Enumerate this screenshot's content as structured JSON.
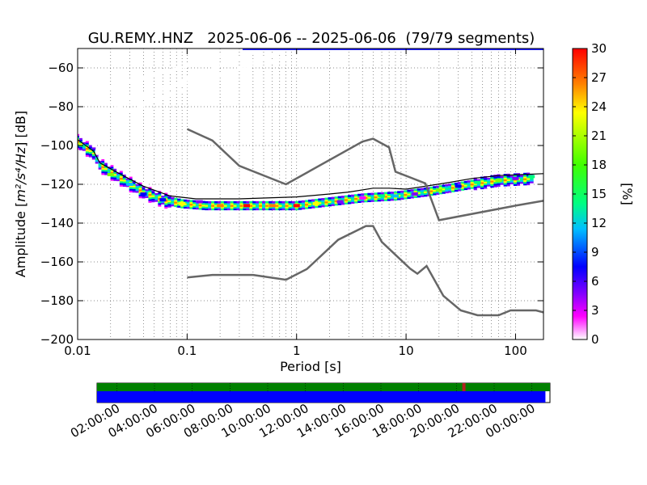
{
  "chart_data": {
    "type": "heatmap",
    "title": "GU.REMY..HNZ   2025-06-06 -- 2025-06-06  (79/79 segments)",
    "xlabel": "Period [s]",
    "ylabel_prefix": "Amplitude [",
    "ylabel_unit": "m²/s⁴/Hz",
    "ylabel_suffix": "] [dB]",
    "xscale": "log",
    "xlim": [
      0.01,
      180
    ],
    "ylim": [
      -200,
      -50
    ],
    "x_ticks": [
      {
        "value": 0.01,
        "label": "0.01"
      },
      {
        "value": 0.1,
        "label": "0.1"
      },
      {
        "value": 1,
        "label": "1"
      },
      {
        "value": 10,
        "label": "10"
      },
      {
        "value": 100,
        "label": "100"
      }
    ],
    "y_ticks": [
      {
        "value": -60,
        "label": "−60"
      },
      {
        "value": -80,
        "label": "−80"
      },
      {
        "value": -100,
        "label": "−100"
      },
      {
        "value": -120,
        "label": "−120"
      },
      {
        "value": -140,
        "label": "−140"
      },
      {
        "value": -160,
        "label": "−160"
      },
      {
        "value": -180,
        "label": "−180"
      },
      {
        "value": -200,
        "label": "−200"
      }
    ],
    "grid": true,
    "colorbar": {
      "label": "[%]",
      "range": [
        0,
        30
      ],
      "ticks": [
        {
          "value": 30,
          "label": "30"
        },
        {
          "value": 27,
          "label": "27"
        },
        {
          "value": 24,
          "label": "24"
        },
        {
          "value": 21,
          "label": "21"
        },
        {
          "value": 18,
          "label": "18"
        },
        {
          "value": 15,
          "label": "15"
        },
        {
          "value": 12,
          "label": "12"
        },
        {
          "value": 9,
          "label": "9"
        },
        {
          "value": 6,
          "label": "6"
        },
        {
          "value": 3,
          "label": "3"
        },
        {
          "value": 0,
          "label": "0"
        }
      ]
    },
    "noise_model_high": [
      [
        0.1,
        -91.5
      ],
      [
        0.17,
        -97.4
      ],
      [
        0.3,
        -110.5
      ],
      [
        0.8,
        -120
      ],
      [
        4,
        -98
      ],
      [
        5,
        -96.5
      ],
      [
        7,
        -101
      ],
      [
        8,
        -113.5
      ],
      [
        15,
        -119.5
      ],
      [
        20,
        -138.5
      ],
      [
        100,
        -131
      ],
      [
        180,
        -128.5
      ]
    ],
    "noise_model_low": [
      [
        0.1,
        -168
      ],
      [
        0.17,
        -166.7
      ],
      [
        0.4,
        -166.7
      ],
      [
        0.8,
        -169.2
      ],
      [
        1.24,
        -163.7
      ],
      [
        2.4,
        -148.6
      ],
      [
        4.3,
        -141.5
      ],
      [
        5,
        -141.5
      ],
      [
        6,
        -149.7
      ],
      [
        10.9,
        -163.5
      ],
      [
        12.7,
        -166.1
      ],
      [
        15.4,
        -162.1
      ],
      [
        21.9,
        -177.5
      ],
      [
        31.6,
        -185
      ],
      [
        45,
        -187.5
      ],
      [
        70,
        -187.5
      ],
      [
        90,
        -185
      ],
      [
        154,
        -185
      ],
      [
        180,
        -186
      ]
    ],
    "mean_psd": [
      [
        0.01,
        -97
      ],
      [
        0.014,
        -103
      ],
      [
        0.016,
        -109
      ],
      [
        0.025,
        -115
      ],
      [
        0.04,
        -121
      ],
      [
        0.07,
        -126
      ],
      [
        0.12,
        -127.5
      ],
      [
        0.3,
        -127.5
      ],
      [
        1,
        -126.5
      ],
      [
        2,
        -125
      ],
      [
        3,
        -124
      ],
      [
        5,
        -122
      ],
      [
        7,
        -122
      ],
      [
        10,
        -122.5
      ],
      [
        15,
        -121
      ],
      [
        25,
        -119
      ],
      [
        40,
        -117
      ],
      [
        70,
        -115.5
      ],
      [
        180,
        -114.5
      ]
    ],
    "pdf_path": [
      [
        0.01,
        -98
      ],
      [
        0.014,
        -104
      ],
      [
        0.016,
        -110
      ],
      [
        0.025,
        -117
      ],
      [
        0.04,
        -124
      ],
      [
        0.06,
        -128
      ],
      [
        0.09,
        -130
      ],
      [
        0.15,
        -131
      ],
      [
        0.5,
        -131
      ],
      [
        1,
        -131
      ],
      [
        2,
        -129
      ],
      [
        4,
        -127
      ],
      [
        8,
        -126
      ],
      [
        15,
        -124
      ],
      [
        25,
        -122
      ],
      [
        40,
        -120
      ],
      [
        70,
        -118
      ],
      [
        150,
        -117
      ]
    ],
    "pdf_points": [
      {
        "x": 0.02,
        "y": -115,
        "p": 20
      },
      {
        "x": 0.03,
        "y": -120,
        "p": 12
      },
      {
        "x": 0.04,
        "y": -125,
        "p": 10
      },
      {
        "x": 0.06,
        "y": -128,
        "p": 9
      },
      {
        "x": 0.09,
        "y": -130,
        "p": 22
      },
      {
        "x": 0.13,
        "y": -129,
        "p": 6
      },
      {
        "x": 0.2,
        "y": -131,
        "p": 27
      },
      {
        "x": 0.35,
        "y": -131,
        "p": 30
      },
      {
        "x": 0.6,
        "y": -131,
        "p": 27
      },
      {
        "x": 1,
        "y": -131,
        "p": 30
      },
      {
        "x": 1.5,
        "y": -130,
        "p": 24
      },
      {
        "x": 2.5,
        "y": -129,
        "p": 5
      },
      {
        "x": 4,
        "y": -127,
        "p": 4
      },
      {
        "x": 6,
        "y": -126,
        "p": 18
      },
      {
        "x": 8,
        "y": -126,
        "p": 14
      },
      {
        "x": 12,
        "y": -125,
        "p": 6
      },
      {
        "x": 20,
        "y": -123,
        "p": 20
      },
      {
        "x": 30,
        "y": -121,
        "p": 10
      },
      {
        "x": 45,
        "y": -119,
        "p": 18
      },
      {
        "x": 70,
        "y": -118,
        "p": 20
      },
      {
        "x": 100,
        "y": -117,
        "p": 5
      },
      {
        "x": 140,
        "y": -116,
        "p": 17
      }
    ],
    "hf_bands": [
      {
        "from": [
          0.011,
          -74
        ],
        "to": [
          0.2,
          -54
        ],
        "p": 1
      },
      {
        "from": [
          0.016,
          -84
        ],
        "to": [
          0.4,
          -52
        ],
        "p": 1
      },
      {
        "from": [
          0.016,
          -88
        ],
        "to": [
          0.7,
          -52
        ],
        "p": 1
      },
      {
        "from": [
          0.02,
          -78
        ],
        "to": [
          1.5,
          -51
        ],
        "p": 1
      }
    ]
  },
  "timeline": {
    "time_labels": [
      "02:00:00",
      "04:00:00",
      "06:00:00",
      "08:00:00",
      "10:00:00",
      "12:00:00",
      "14:00:00",
      "16:00:00",
      "18:00:00",
      "20:00:00",
      "22:00:00",
      "00:00:00"
    ],
    "data_coverage": 1.0,
    "psd_coverage": 0.99,
    "gap_marker_fraction": 0.81,
    "colors": {
      "data": "#008000",
      "psd": "#0000ff",
      "gap": "#b22222"
    }
  },
  "colors": {
    "noise_model": "#666666",
    "mean_psd": "#000000",
    "colormap": [
      "#ffffff",
      "#ff00ff",
      "#7f00ff",
      "#0000ff",
      "#00bfff",
      "#00ff7f",
      "#7fff00",
      "#ffff00",
      "#ff7f00",
      "#ff0000"
    ]
  }
}
